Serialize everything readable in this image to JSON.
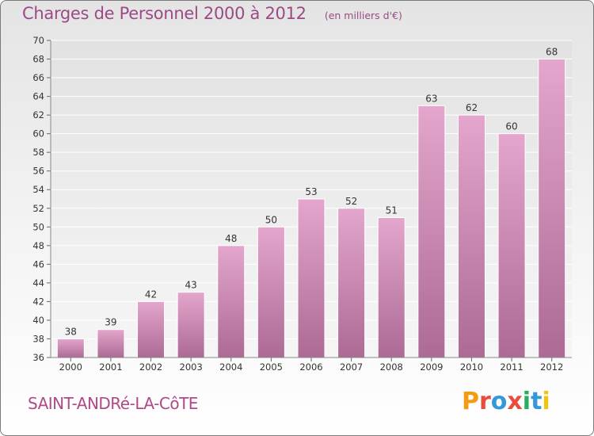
{
  "header": {
    "title": "Charges de Personnel 2000 à 2012",
    "subtitle": "(en milliers d'€)"
  },
  "footer": {
    "town": "SAINT-ANDRé-LA-CôTE",
    "brand": "Proxiti"
  },
  "colors": {
    "bar_top": "#e4a6cd",
    "bar_bottom": "#ac6a94",
    "title": "#9b4a84",
    "town": "#b04a86",
    "grid": "#ffffff",
    "brand_letters": [
      "#f39c12",
      "#e74c3c",
      "#3498db",
      "#e74c3c",
      "#27ae60",
      "#3498db",
      "#f1c40f"
    ]
  },
  "chart_data": {
    "type": "bar",
    "title": "Charges de Personnel 2000 à 2012",
    "subtitle": "(en milliers d'€)",
    "categories": [
      "2000",
      "2001",
      "2002",
      "2003",
      "2004",
      "2005",
      "2006",
      "2007",
      "2008",
      "2009",
      "2010",
      "2011",
      "2012"
    ],
    "values": [
      38,
      39,
      42,
      43,
      48,
      50,
      53,
      52,
      51,
      63,
      62,
      60,
      68
    ],
    "ylim": [
      36,
      70
    ],
    "yticks": [
      36,
      38,
      40,
      42,
      44,
      46,
      48,
      50,
      52,
      54,
      56,
      58,
      60,
      62,
      64,
      66,
      68,
      70
    ],
    "grid": true,
    "xlabel": "",
    "ylabel": ""
  }
}
